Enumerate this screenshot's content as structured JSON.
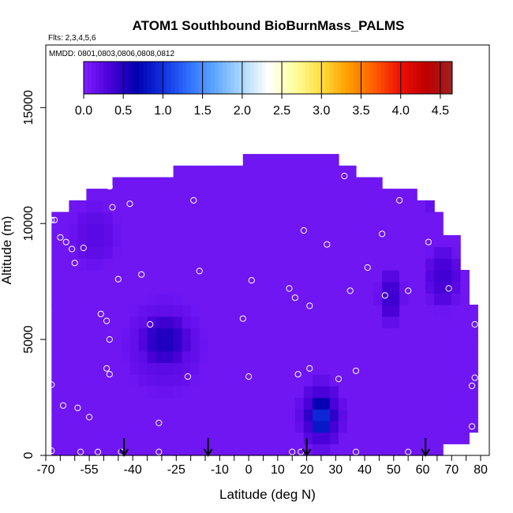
{
  "chart_data": {
    "type": "heatmap",
    "title": "ATOM1 Southbound BioBurnMass_PALMS",
    "subtitle_flights": "Flts: 2,3,4,5,6",
    "subtitle_dates": "MMDD: 0801,0803,0806,0808,0812",
    "xlabel": "Latitude (deg N)",
    "ylabel": "Altitude (m)",
    "xlim": [
      -70,
      83
    ],
    "ylim": [
      0,
      17700
    ],
    "x_tick_values": [
      -70,
      -55,
      -40,
      -25,
      -10,
      0,
      10,
      20,
      30,
      40,
      50,
      60,
      70,
      80
    ],
    "x_tick_labels": [
      "-70",
      "-55",
      "-40",
      "-25",
      "-10",
      "0",
      "10",
      "20",
      "30",
      "40",
      "50",
      "60",
      "70",
      "80"
    ],
    "x_minor_ticks": [
      -65,
      -60,
      -50,
      -45,
      -35,
      -30,
      -20,
      -15,
      -5,
      5,
      15,
      25,
      35,
      45,
      55,
      65,
      75
    ],
    "y_tick_values": [
      0,
      5000,
      10000,
      15000
    ],
    "y_tick_labels": [
      "0",
      "5000",
      "10000",
      "15000"
    ],
    "colorbar": {
      "min": 0,
      "max": 4.65,
      "tick_values": [
        0,
        0.5,
        1,
        1.5,
        2,
        2.5,
        3,
        3.5,
        4,
        4.5
      ],
      "tick_labels": [
        "0.0",
        "0.5",
        "1.0",
        "1.5",
        "2.0",
        "2.5",
        "3.0",
        "3.5",
        "4.0",
        "4.5"
      ],
      "colors": [
        "#7f1fff",
        "#4a00d8",
        "#0000b0",
        "#1030e0",
        "#3070ff",
        "#60a8ff",
        "#a8d8ff",
        "#ffffff",
        "#ffffa0",
        "#ffe040",
        "#ffa000",
        "#ff6000",
        "#f01000",
        "#c00000",
        "#a02020"
      ]
    },
    "fill_value": 0.1,
    "coverage": [
      {
        "lat": [
          -68,
          -62
        ],
        "alt": [
          0,
          10450
        ]
      },
      {
        "lat": [
          -62,
          -55
        ],
        "alt": [
          0,
          11000
        ]
      },
      {
        "lat": [
          -55,
          -47
        ],
        "alt": [
          0,
          11500
        ]
      },
      {
        "lat": [
          -47,
          -25
        ],
        "alt": [
          0,
          11800
        ]
      },
      {
        "lat": [
          -25,
          -1
        ],
        "alt": [
          0,
          12350
        ]
      },
      {
        "lat": [
          -1,
          30
        ],
        "alt": [
          0,
          12900
        ]
      },
      {
        "lat": [
          30,
          38
        ],
        "alt": [
          0,
          12350
        ]
      },
      {
        "lat": [
          38,
          46
        ],
        "alt": [
          0,
          12000
        ]
      },
      {
        "lat": [
          46,
          57
        ],
        "alt": [
          0,
          11650
        ]
      },
      {
        "lat": [
          57,
          63
        ],
        "alt": [
          0,
          11200
        ]
      },
      {
        "lat": [
          63,
          68
        ],
        "alt": [
          0,
          10450
        ]
      },
      {
        "lat": [
          68,
          74
        ],
        "alt": [
          300,
          9700
        ]
      },
      {
        "lat": [
          74,
          77
        ],
        "alt": [
          600,
          8100
        ]
      },
      {
        "lat": [
          77,
          80
        ],
        "alt": [
          900,
          6500
        ]
      }
    ],
    "enhancements": [
      {
        "lat": [
          20,
          30
        ],
        "alt": [
          700,
          2500
        ],
        "value": 0.55
      },
      {
        "lat": [
          16,
          34
        ],
        "alt": [
          0,
          3500
        ],
        "value": 0.35
      },
      {
        "lat": [
          -38,
          -20
        ],
        "alt": [
          3800,
          6200
        ],
        "value": 0.3
      },
      {
        "lat": [
          44,
          54
        ],
        "alt": [
          5500,
          8200
        ],
        "value": 0.32
      },
      {
        "lat": [
          60,
          74
        ],
        "alt": [
          6200,
          9200
        ],
        "value": 0.28
      },
      {
        "lat": [
          62,
          68
        ],
        "alt": [
          10400,
          11500
        ],
        "value": 0.4
      },
      {
        "lat": [
          -44,
          -14
        ],
        "alt": [
          2500,
          7000
        ],
        "value": 0.15
      },
      {
        "lat": [
          -62,
          -44
        ],
        "alt": [
          8000,
          11000
        ],
        "value": 0.14
      }
    ],
    "sample_points": [
      {
        "lat": -68,
        "alt": 10150
      },
      {
        "lat": -67,
        "alt": 10150
      },
      {
        "lat": -65,
        "alt": 9400
      },
      {
        "lat": -63,
        "alt": 9200
      },
      {
        "lat": -61,
        "alt": 8900
      },
      {
        "lat": -57,
        "alt": 8950
      },
      {
        "lat": -60,
        "alt": 8300
      },
      {
        "lat": -48,
        "alt": 11600
      },
      {
        "lat": -47,
        "alt": 10700
      },
      {
        "lat": -41,
        "alt": 10850
      },
      {
        "lat": -45,
        "alt": 7600
      },
      {
        "lat": -37,
        "alt": 7800
      },
      {
        "lat": -51,
        "alt": 6100
      },
      {
        "lat": -49,
        "alt": 5800
      },
      {
        "lat": -48,
        "alt": 5000
      },
      {
        "lat": -34,
        "alt": 5650
      },
      {
        "lat": -19,
        "alt": 11000
      },
      {
        "lat": -17,
        "alt": 7950
      },
      {
        "lat": -2,
        "alt": 5900
      },
      {
        "lat": 1,
        "alt": 7550
      },
      {
        "lat": 14,
        "alt": 7200
      },
      {
        "lat": 16,
        "alt": 6800
      },
      {
        "lat": 19,
        "alt": 9700
      },
      {
        "lat": 21,
        "alt": 6450
      },
      {
        "lat": 27,
        "alt": 9100
      },
      {
        "lat": 27,
        "alt": 13150
      },
      {
        "lat": 33,
        "alt": 12050
      },
      {
        "lat": 35,
        "alt": 7100
      },
      {
        "lat": 41,
        "alt": 8100
      },
      {
        "lat": 46,
        "alt": 9550
      },
      {
        "lat": 47,
        "alt": 6900
      },
      {
        "lat": 52,
        "alt": 11000
      },
      {
        "lat": 55,
        "alt": 7100
      },
      {
        "lat": 62,
        "alt": 9200
      },
      {
        "lat": 66,
        "alt": 11400
      },
      {
        "lat": 71,
        "alt": 9950
      },
      {
        "lat": 75,
        "alt": 9700
      },
      {
        "lat": 69,
        "alt": 7200
      },
      {
        "lat": 78,
        "alt": 5650
      },
      {
        "lat": -68,
        "alt": 3050
      },
      {
        "lat": -64,
        "alt": 2150
      },
      {
        "lat": -59,
        "alt": 2050
      },
      {
        "lat": -55,
        "alt": 1650
      },
      {
        "lat": -49,
        "alt": 3750
      },
      {
        "lat": -48,
        "alt": 3500
      },
      {
        "lat": -31,
        "alt": 1400
      },
      {
        "lat": -21,
        "alt": 3400
      },
      {
        "lat": 0,
        "alt": 3400
      },
      {
        "lat": 17,
        "alt": 3500
      },
      {
        "lat": 21,
        "alt": 3750
      },
      {
        "lat": 31,
        "alt": 3300
      },
      {
        "lat": 37,
        "alt": 3650
      },
      {
        "lat": 77,
        "alt": 3000
      },
      {
        "lat": 78,
        "alt": 3350
      },
      {
        "lat": 77,
        "alt": 1250
      },
      {
        "lat": -68,
        "alt": 200
      },
      {
        "lat": -58,
        "alt": 150
      },
      {
        "lat": -52,
        "alt": 150
      },
      {
        "lat": -44,
        "alt": 150
      },
      {
        "lat": -31,
        "alt": 150
      },
      {
        "lat": 15,
        "alt": 150
      },
      {
        "lat": 18,
        "alt": 150
      },
      {
        "lat": 37,
        "alt": 150
      },
      {
        "lat": 55,
        "alt": 150
      }
    ],
    "arrow_latitudes": [
      -43,
      -14,
      20,
      61
    ]
  }
}
